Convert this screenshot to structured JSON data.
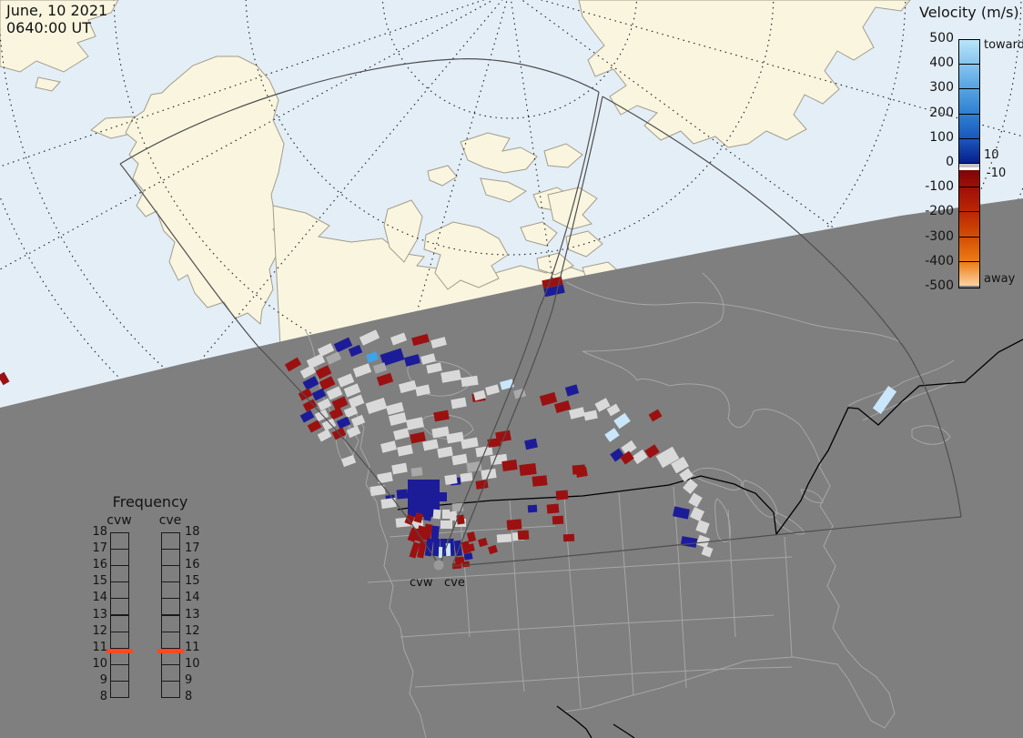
{
  "timestamp": {
    "date": "June, 10 2021",
    "time": "0640:00 UT"
  },
  "velocity_legend": {
    "title": "Velocity (m/s)",
    "ticks": [
      "500",
      "400",
      "300",
      "200",
      "100",
      "0",
      "-100",
      "-200",
      "-300",
      "-400",
      "-500"
    ],
    "toward_label": "toward",
    "away_label": "away",
    "zero_upper": "10",
    "zero_lower": "-10",
    "toward_stops": [
      "#B9E5F9",
      "#86C4EF",
      "#55A3E2",
      "#2F7FD2",
      "#1A57BC",
      "#071E8C"
    ],
    "away_stops": [
      "#7C0606",
      "#9E0F08",
      "#BC2605",
      "#D44E04",
      "#EC7C16",
      "#FBD2A0"
    ],
    "zero_band_gray": "#C4C4C4",
    "zero_band_white": "#FFFFFF"
  },
  "frequency_legend": {
    "title": "Frequency",
    "columns": [
      "cvw",
      "cve"
    ],
    "ticks": [
      "18",
      "17",
      "16",
      "15",
      "14",
      "13",
      "12",
      "11",
      "10",
      "9",
      "8"
    ],
    "marker_value": 10.8,
    "marker_color": "#FF4820"
  },
  "map_labels": {
    "radar_west": "cvw",
    "radar_east": "cve"
  },
  "palette": {
    "ocean": "#E4EEF7",
    "land": "#F9F5DF",
    "land_outline": "#A29D8B",
    "night": "#7F7F7F",
    "night_outline": "#A6A6A6",
    "border_black": "#000000",
    "graticule": "#1A1A1A",
    "fan_line": "#4F4F4F",
    "radar_dot": "#9A9A9A",
    "text": "#141414",
    "cell_colors": {
      "G": "#D9D9D9",
      "D": "#A9A9A9",
      "R": "#9B1111",
      "B": "#1C1C99",
      "P": "#C9E6FA",
      "S": "#3FA3EC"
    }
  },
  "cells": [
    [
      314,
      396,
      16,
      9,
      -30,
      "R"
    ],
    [
      0,
      410,
      8,
      12,
      -30,
      "R"
    ],
    [
      396,
      366,
      20,
      10,
      -25,
      "G"
    ],
    [
      430,
      368,
      16,
      9,
      -20,
      "G"
    ],
    [
      368,
      374,
      18,
      10,
      -25,
      "B"
    ],
    [
      350,
      380,
      16,
      9,
      -25,
      "G"
    ],
    [
      384,
      381,
      13,
      9,
      -22,
      "B"
    ],
    [
      453,
      369,
      18,
      9,
      -15,
      "R"
    ],
    [
      474,
      372,
      16,
      9,
      -15,
      "G"
    ],
    [
      338,
      392,
      18,
      10,
      -25,
      "G"
    ],
    [
      359,
      389,
      15,
      9,
      -25,
      "D"
    ],
    [
      403,
      388,
      12,
      9,
      -20,
      "S"
    ],
    [
      419,
      386,
      24,
      13,
      -18,
      "B"
    ],
    [
      445,
      391,
      16,
      10,
      -15,
      "B"
    ],
    [
      463,
      390,
      15,
      9,
      -15,
      "G"
    ],
    [
      331,
      404,
      15,
      9,
      -28,
      "G"
    ],
    [
      348,
      404,
      15,
      10,
      -26,
      "R"
    ],
    [
      389,
      402,
      18,
      10,
      -20,
      "G"
    ],
    [
      411,
      400,
      13,
      9,
      -18,
      "D"
    ],
    [
      469,
      400,
      16,
      9,
      -12,
      "G"
    ],
    [
      334,
      416,
      15,
      10,
      -28,
      "B"
    ],
    [
      352,
      416,
      15,
      10,
      -26,
      "R"
    ],
    [
      372,
      413,
      16,
      10,
      -22,
      "G"
    ],
    [
      415,
      412,
      16,
      10,
      -18,
      "R"
    ],
    [
      485,
      408,
      21,
      11,
      -10,
      "G"
    ],
    [
      507,
      414,
      18,
      10,
      -8,
      "G"
    ],
    [
      329,
      429,
      13,
      9,
      -28,
      "R"
    ],
    [
      344,
      429,
      13,
      9,
      -26,
      "B"
    ],
    [
      360,
      427,
      15,
      10,
      -24,
      "G"
    ],
    [
      379,
      424,
      16,
      10,
      -22,
      "G"
    ],
    [
      439,
      420,
      18,
      10,
      -15,
      "G"
    ],
    [
      457,
      424,
      15,
      10,
      -12,
      "G"
    ],
    [
      334,
      441,
      13,
      9,
      -28,
      "R"
    ],
    [
      350,
      440,
      13,
      9,
      -26,
      "G"
    ],
    [
      366,
      438,
      15,
      10,
      -24,
      "R"
    ],
    [
      384,
      436,
      15,
      10,
      -22,
      "G"
    ],
    [
      403,
      440,
      21,
      12,
      -18,
      "G"
    ],
    [
      425,
      444,
      18,
      10,
      -15,
      "G"
    ],
    [
      331,
      453,
      13,
      9,
      -28,
      "B"
    ],
    [
      347,
      452,
      13,
      9,
      -26,
      "G"
    ],
    [
      363,
      450,
      13,
      9,
      -24,
      "R"
    ],
    [
      379,
      448,
      13,
      9,
      -22,
      "G"
    ],
    [
      339,
      464,
      13,
      9,
      -28,
      "R"
    ],
    [
      355,
      462,
      13,
      9,
      -26,
      "G"
    ],
    [
      371,
      460,
      13,
      9,
      -24,
      "B"
    ],
    [
      387,
      458,
      13,
      9,
      -22,
      "G"
    ],
    [
      350,
      474,
      13,
      9,
      -28,
      "G"
    ],
    [
      366,
      472,
      13,
      9,
      -26,
      "R"
    ],
    [
      382,
      470,
      13,
      9,
      -24,
      "G"
    ],
    [
      376,
      502,
      14,
      9,
      -20,
      "G"
    ],
    [
      428,
      455,
      18,
      11,
      -14,
      "G"
    ],
    [
      447,
      460,
      18,
      11,
      -12,
      "G"
    ],
    [
      451,
      476,
      16,
      10,
      -12,
      "R"
    ],
    [
      433,
      472,
      16,
      10,
      -14,
      "G"
    ],
    [
      419,
      486,
      16,
      10,
      -14,
      "G"
    ],
    [
      437,
      490,
      16,
      10,
      -12,
      "G"
    ],
    [
      477,
      452,
      16,
      10,
      -10,
      "R"
    ],
    [
      496,
      438,
      16,
      10,
      -10,
      "G"
    ],
    [
      519,
      432,
      14,
      9,
      -8,
      "R"
    ],
    [
      596,
      306,
      22,
      9,
      -12,
      "R"
    ],
    [
      598,
      315,
      22,
      9,
      -12,
      "B"
    ],
    [
      475,
      470,
      18,
      10,
      -10,
      "G"
    ],
    [
      491,
      476,
      18,
      10,
      -10,
      "G"
    ],
    [
      507,
      482,
      18,
      10,
      -10,
      "G"
    ],
    [
      523,
      491,
      18,
      10,
      -9,
      "G"
    ],
    [
      539,
      500,
      18,
      10,
      -8,
      "G"
    ],
    [
      465,
      484,
      16,
      10,
      -12,
      "G"
    ],
    [
      481,
      492,
      16,
      10,
      -10,
      "G"
    ],
    [
      497,
      500,
      16,
      10,
      -10,
      "G"
    ],
    [
      513,
      508,
      16,
      10,
      -8,
      "D"
    ],
    [
      529,
      516,
      16,
      10,
      -8,
      "G"
    ],
    [
      536,
      482,
      14,
      9,
      -8,
      "R"
    ],
    [
      545,
      474,
      16,
      11,
      -10,
      "R"
    ],
    [
      552,
      506,
      16,
      11,
      -8,
      "R"
    ],
    [
      571,
      510,
      18,
      12,
      -7,
      "R"
    ],
    [
      585,
      523,
      16,
      11,
      -6,
      "R"
    ],
    [
      601,
      554,
      13,
      10,
      -5,
      "R"
    ],
    [
      611,
      539,
      13,
      10,
      -5,
      "R"
    ],
    [
      629,
      511,
      14,
      10,
      -5,
      "R"
    ],
    [
      633,
      514,
      12,
      10,
      -10,
      "R"
    ],
    [
      523,
      528,
      13,
      9,
      -8,
      "R"
    ],
    [
      577,
      483,
      13,
      10,
      -12,
      "B"
    ],
    [
      622,
      424,
      13,
      10,
      -16,
      "B"
    ],
    [
      448,
      527,
      35,
      41,
      0,
      "B"
    ],
    [
      436,
      538,
      12,
      10,
      -5,
      "B"
    ],
    [
      482,
      541,
      9,
      10,
      0,
      "B"
    ],
    [
      495,
      525,
      11,
      8,
      -6,
      "B"
    ],
    [
      424,
      544,
      10,
      9,
      -8,
      "B"
    ],
    [
      431,
      510,
      16,
      10,
      -10,
      "G"
    ],
    [
      415,
      520,
      16,
      10,
      -10,
      "G"
    ],
    [
      407,
      534,
      16,
      10,
      -8,
      "G"
    ],
    [
      419,
      548,
      16,
      10,
      -8,
      "G"
    ],
    [
      435,
      569,
      16,
      10,
      -6,
      "G"
    ],
    [
      452,
      572,
      13,
      9,
      -5,
      "G"
    ],
    [
      489,
      522,
      13,
      10,
      -8,
      "G"
    ],
    [
      506,
      520,
      13,
      9,
      -8,
      "G"
    ],
    [
      484,
      572,
      13,
      9,
      0,
      "G"
    ],
    [
      500,
      570,
      12,
      9,
      0,
      "G"
    ],
    [
      546,
      587,
      16,
      9,
      -4,
      "G"
    ],
    [
      563,
      585,
      13,
      9,
      -4,
      "G"
    ],
    [
      452,
      514,
      12,
      9,
      -8,
      "D"
    ],
    [
      497,
      553,
      12,
      9,
      -5,
      "D"
    ],
    [
      557,
      571,
      16,
      11,
      -5,
      "R"
    ],
    [
      569,
      583,
      12,
      10,
      -4,
      "R"
    ],
    [
      607,
      567,
      12,
      9,
      -4,
      "R"
    ],
    [
      619,
      587,
      12,
      8,
      -3,
      "R"
    ],
    [
      580,
      555,
      10,
      8,
      -4,
      "B"
    ],
    [
      550,
      418,
      14,
      9,
      -15,
      "P"
    ],
    [
      534,
      424,
      14,
      9,
      -15,
      "G"
    ],
    [
      521,
      430,
      12,
      9,
      -15,
      "G"
    ],
    [
      565,
      428,
      12,
      9,
      -15,
      "D"
    ],
    [
      594,
      433,
      17,
      11,
      -16,
      "R"
    ],
    [
      610,
      442,
      16,
      10,
      -16,
      "R"
    ],
    [
      626,
      449,
      16,
      10,
      -14,
      "G"
    ],
    [
      642,
      452,
      14,
      9,
      -12,
      "G"
    ],
    [
      655,
      440,
      14,
      10,
      -28,
      "G"
    ],
    [
      668,
      446,
      12,
      9,
      -30,
      "G"
    ],
    [
      676,
      457,
      15,
      11,
      -35,
      "P"
    ],
    [
      666,
      473,
      13,
      10,
      -35,
      "P"
    ],
    [
      684,
      487,
      14,
      10,
      -35,
      "G"
    ],
    [
      696,
      497,
      14,
      10,
      -35,
      "G"
    ],
    [
      672,
      495,
      12,
      10,
      -35,
      "B"
    ],
    [
      683,
      498,
      12,
      10,
      -35,
      "R"
    ],
    [
      710,
      491,
      13,
      10,
      -33,
      "R"
    ],
    [
      714,
      452,
      12,
      9,
      -30,
      "R"
    ],
    [
      723,
      495,
      21,
      15,
      -30,
      "G"
    ],
    [
      739,
      505,
      16,
      12,
      -30,
      "G"
    ],
    [
      748,
      517,
      12,
      10,
      -35,
      "G"
    ],
    [
      752,
      529,
      13,
      11,
      -50,
      "G"
    ],
    [
      758,
      544,
      12,
      11,
      -60,
      "G"
    ],
    [
      743,
      555,
      11,
      17,
      -78,
      "B"
    ],
    [
      760,
      559,
      12,
      12,
      -65,
      "G"
    ],
    [
      766,
      573,
      12,
      12,
      -70,
      "G"
    ],
    [
      752,
      587,
      10,
      17,
      -80,
      "B"
    ],
    [
      767,
      589,
      11,
      12,
      -70,
      "G"
    ],
    [
      772,
      601,
      10,
      10,
      -70,
      "G"
    ],
    [
      446,
      566,
      8,
      10,
      22,
      "R"
    ],
    [
      456,
      564,
      8,
      10,
      15,
      "R"
    ],
    [
      466,
      562,
      8,
      10,
      10,
      "B"
    ],
    [
      476,
      560,
      8,
      10,
      5,
      "G"
    ],
    [
      486,
      560,
      8,
      10,
      0,
      "G"
    ],
    [
      494,
      562,
      8,
      10,
      -5,
      "G"
    ],
    [
      502,
      566,
      8,
      10,
      -8,
      "R"
    ],
    [
      450,
      580,
      8,
      15,
      20,
      "R"
    ],
    [
      458,
      578,
      8,
      17,
      15,
      "R"
    ],
    [
      466,
      576,
      8,
      18,
      10,
      "R"
    ],
    [
      474,
      578,
      8,
      18,
      5,
      "B"
    ],
    [
      452,
      596,
      7,
      17,
      18,
      "R"
    ],
    [
      460,
      594,
      7,
      19,
      12,
      "R"
    ],
    [
      468,
      592,
      7,
      19,
      8,
      "B"
    ],
    [
      476,
      592,
      7,
      19,
      4,
      "B"
    ],
    [
      484,
      592,
      7,
      19,
      0,
      "B"
    ],
    [
      492,
      592,
      7,
      19,
      -4,
      "B"
    ],
    [
      500,
      594,
      7,
      17,
      -8,
      "B"
    ],
    [
      490,
      597,
      5,
      14,
      -2,
      "P"
    ],
    [
      482,
      601,
      4,
      12,
      2,
      "P"
    ],
    [
      508,
      595,
      8,
      13,
      -12,
      "R"
    ],
    [
      514,
      585,
      8,
      10,
      -14,
      "R"
    ],
    [
      497,
      619,
      10,
      6,
      -5,
      "R"
    ],
    [
      508,
      617,
      8,
      6,
      -8,
      "R"
    ],
    [
      512,
      598,
      9,
      8,
      -12,
      "R"
    ],
    [
      526,
      592,
      9,
      8,
      -16,
      "R"
    ],
    [
      537,
      600,
      9,
      8,
      -18,
      "R"
    ],
    [
      500,
      612,
      10,
      7,
      -6,
      "R"
    ],
    [
      510,
      608,
      9,
      7,
      -10,
      "B"
    ],
    [
      957,
      434,
      30,
      11,
      -55,
      "P"
    ]
  ]
}
